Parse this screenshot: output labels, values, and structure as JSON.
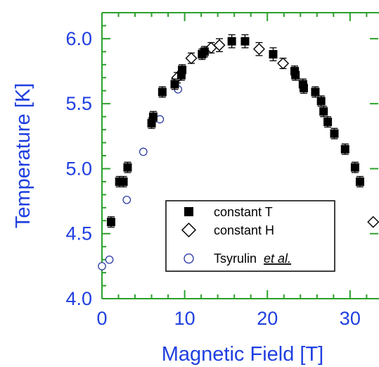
{
  "colors": {
    "axis": "#2ca02c",
    "text": "#1f3fe0",
    "constant_T": "#000000",
    "constant_H": "#000000",
    "tsyrulin": "#1f2fa0"
  },
  "chart_data": {
    "type": "scatter",
    "xlabel": "Magnetic Field [T]",
    "ylabel": "Temperature [K]",
    "xlim": [
      0,
      33.5
    ],
    "ylim": [
      4.0,
      6.2
    ],
    "xticks": [
      "0",
      "10",
      "20",
      "30"
    ],
    "xtick_values": [
      0,
      10,
      20,
      30
    ],
    "yticks": [
      "4.0",
      "4.5",
      "5.0",
      "5.5",
      "6.0"
    ],
    "ytick_values": [
      4.0,
      4.5,
      5.0,
      5.5,
      6.0
    ],
    "legend_position": "lower-center",
    "series": [
      {
        "name": "constant T",
        "marker": "filled-square",
        "x": [
          1.1,
          2.1,
          2.6,
          3.1,
          6.0,
          6.2,
          7.3,
          8.8,
          9.6,
          9.7,
          12.1,
          12.4,
          15.7,
          17.3,
          20.7,
          23.3,
          23.4,
          24.3,
          24.4,
          25.8,
          26.5,
          26.8,
          27.3,
          28.1,
          29.4,
          30.6,
          31.2
        ],
        "y": [
          4.59,
          4.9,
          4.9,
          5.01,
          5.35,
          5.4,
          5.59,
          5.65,
          5.72,
          5.76,
          5.88,
          5.9,
          5.98,
          5.98,
          5.88,
          5.75,
          5.72,
          5.65,
          5.62,
          5.59,
          5.52,
          5.44,
          5.36,
          5.27,
          5.15,
          5.01,
          4.9
        ],
        "error": [
          0.04,
          0.04,
          0.04,
          0.04,
          0.04,
          0.04,
          0.04,
          0.04,
          0.04,
          0.04,
          0.04,
          0.04,
          0.05,
          0.05,
          0.05,
          0.04,
          0.04,
          0.04,
          0.04,
          0.04,
          0.04,
          0.04,
          0.04,
          0.04,
          0.04,
          0.04,
          0.04
        ]
      },
      {
        "name": "constant H",
        "marker": "open-diamond",
        "x": [
          9.1,
          10.8,
          13.2,
          14.2,
          19.0,
          21.9,
          32.8
        ],
        "y": [
          5.7,
          5.85,
          5.93,
          5.95,
          5.92,
          5.81,
          4.59
        ],
        "error": [
          0.04,
          0.04,
          0.04,
          0.05,
          0.05,
          0.04,
          0
        ]
      },
      {
        "name": "Tsyrulin",
        "legend_suffix": "et al.",
        "marker": "open-circle",
        "x": [
          0.0,
          0.9,
          3.0,
          5.0,
          7.0,
          9.2
        ],
        "y": [
          4.25,
          4.3,
          4.76,
          5.13,
          5.38,
          5.61
        ]
      }
    ]
  }
}
